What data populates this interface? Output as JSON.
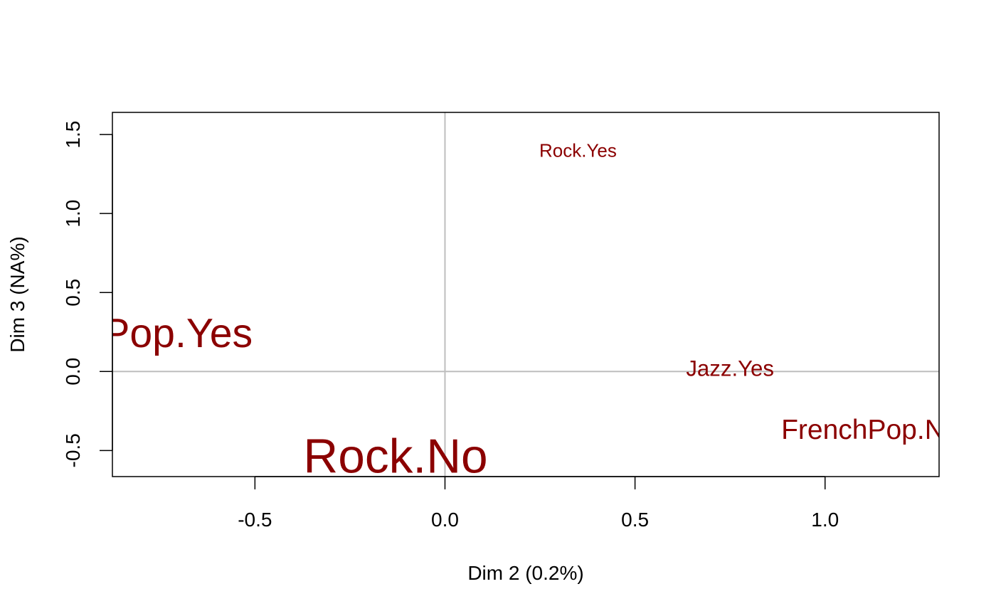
{
  "chart_data": {
    "type": "scatter",
    "title": "",
    "xlabel": "Dim 2 (0.2%)",
    "ylabel": "Dim 3 (NA%)",
    "xlim": [
      -0.875,
      1.3
    ],
    "ylim": [
      -0.665,
      1.64
    ],
    "xticks": [
      {
        "value": -0.5,
        "label": "-0.5"
      },
      {
        "value": 0.0,
        "label": "0.0"
      },
      {
        "value": 0.5,
        "label": "0.5"
      },
      {
        "value": 1.0,
        "label": "1.0"
      }
    ],
    "yticks": [
      {
        "value": -0.5,
        "label": "-0.5"
      },
      {
        "value": 0.0,
        "label": "0.0"
      },
      {
        "value": 0.5,
        "label": "0.5"
      },
      {
        "value": 1.0,
        "label": "1.0"
      },
      {
        "value": 1.5,
        "label": "1.5"
      }
    ],
    "reference_lines": {
      "x": 0,
      "y": 0,
      "color": "#bebebe"
    },
    "label_color": "#8b0000",
    "points": [
      {
        "name": "Rock.Yes",
        "label": "Rock.Yes",
        "x": 0.35,
        "y": 1.4,
        "size": 1.0
      },
      {
        "name": "FrenchPop.Yes",
        "label": "FrenchPop.Yes",
        "x": -0.87,
        "y": 0.24,
        "size": 2.2
      },
      {
        "name": "Jazz.Yes",
        "label": "Jazz.Yes",
        "x": 0.75,
        "y": 0.02,
        "size": 1.2
      },
      {
        "name": "FrenchPop.No",
        "label": "FrenchPop.No",
        "x": 1.12,
        "y": -0.37,
        "size": 1.5
      },
      {
        "name": "Rock.No",
        "label": "Rock.No",
        "x": -0.13,
        "y": -0.54,
        "size": 2.6
      }
    ]
  }
}
